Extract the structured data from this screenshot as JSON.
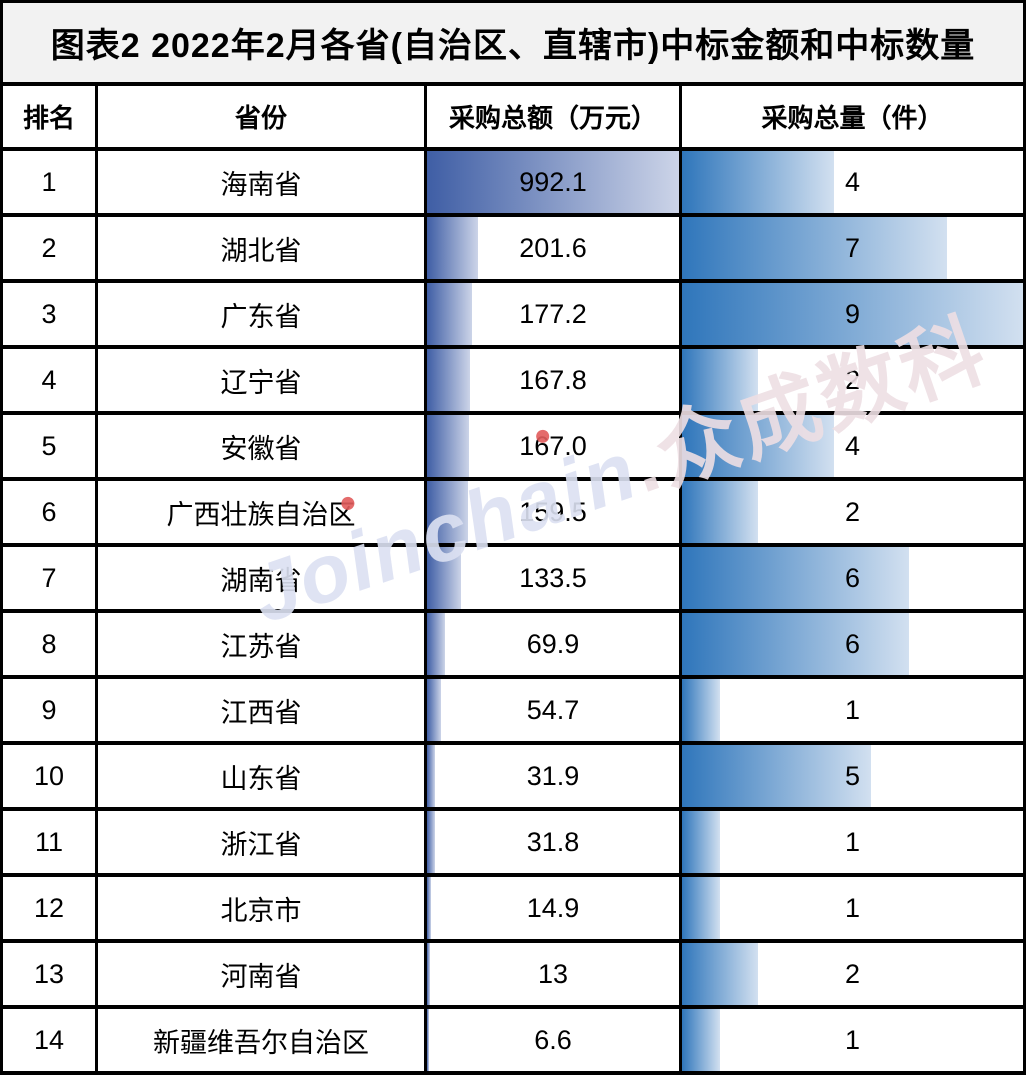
{
  "title": "图表2  2022年2月各省(自治区、直辖市)中标金额和中标数量",
  "colors": {
    "border": "#000000",
    "title_bg": "#f2f2f2",
    "amount_bar_start": "#3f5ea5",
    "amount_bar_end": "#ccd4e8",
    "quantity_bar_start": "#2f76bb",
    "quantity_bar_end": "#d2e0f0",
    "watermark_latin": "#dce1f2",
    "watermark_cjk": "#eedfe4",
    "watermark_dot_red": "#e25c5c"
  },
  "watermark": {
    "latin": "Joinchain",
    "dot": ".",
    "cjk": "众成数科"
  },
  "table": {
    "headers": [
      "排名",
      "省份",
      "采购总额（万元）",
      "采购总量（件）"
    ],
    "rows": [
      {
        "rank": "1",
        "province": "海南省",
        "amount": "992.1",
        "quantity": "4"
      },
      {
        "rank": "2",
        "province": "湖北省",
        "amount": "201.6",
        "quantity": "7"
      },
      {
        "rank": "3",
        "province": "广东省",
        "amount": "177.2",
        "quantity": "9"
      },
      {
        "rank": "4",
        "province": "辽宁省",
        "amount": "167.8",
        "quantity": "2"
      },
      {
        "rank": "5",
        "province": "安徽省",
        "amount": "167.0",
        "quantity": "4"
      },
      {
        "rank": "6",
        "province": "广西壮族自治区",
        "amount": "159.5",
        "quantity": "2"
      },
      {
        "rank": "7",
        "province": "湖南省",
        "amount": "133.5",
        "quantity": "6"
      },
      {
        "rank": "8",
        "province": "江苏省",
        "amount": "69.9",
        "quantity": "6"
      },
      {
        "rank": "9",
        "province": "江西省",
        "amount": "54.7",
        "quantity": "1"
      },
      {
        "rank": "10",
        "province": "山东省",
        "amount": "31.9",
        "quantity": "5"
      },
      {
        "rank": "11",
        "province": "浙江省",
        "amount": "31.8",
        "quantity": "1"
      },
      {
        "rank": "12",
        "province": "北京市",
        "amount": "14.9",
        "quantity": "1"
      },
      {
        "rank": "13",
        "province": "河南省",
        "amount": "13",
        "quantity": "2"
      },
      {
        "rank": "14",
        "province": "新疆维吾尔自治区",
        "amount": "6.6",
        "quantity": "1"
      }
    ]
  },
  "chart_data": {
    "type": "table",
    "title": "图表2  2022年2月各省(自治区、直辖市)中标金额和中标数量",
    "categories": [
      "海南省",
      "湖北省",
      "广东省",
      "辽宁省",
      "安徽省",
      "广西壮族自治区",
      "湖南省",
      "江苏省",
      "江西省",
      "山东省",
      "浙江省",
      "北京市",
      "河南省",
      "新疆维吾尔自治区"
    ],
    "series": [
      {
        "name": "采购总额（万元）",
        "values": [
          992.1,
          201.6,
          177.2,
          167.8,
          167.0,
          159.5,
          133.5,
          69.9,
          54.7,
          31.9,
          31.8,
          14.9,
          13,
          6.6
        ]
      },
      {
        "name": "采购总量（件）",
        "values": [
          4,
          7,
          9,
          2,
          4,
          2,
          6,
          6,
          1,
          5,
          1,
          1,
          2,
          1
        ]
      }
    ],
    "bar_scale": {
      "amount_max": 992.1,
      "quantity_max": 9
    },
    "bar_style": "in-cell horizontal data bars, left-to-right dark-to-light gradient"
  }
}
